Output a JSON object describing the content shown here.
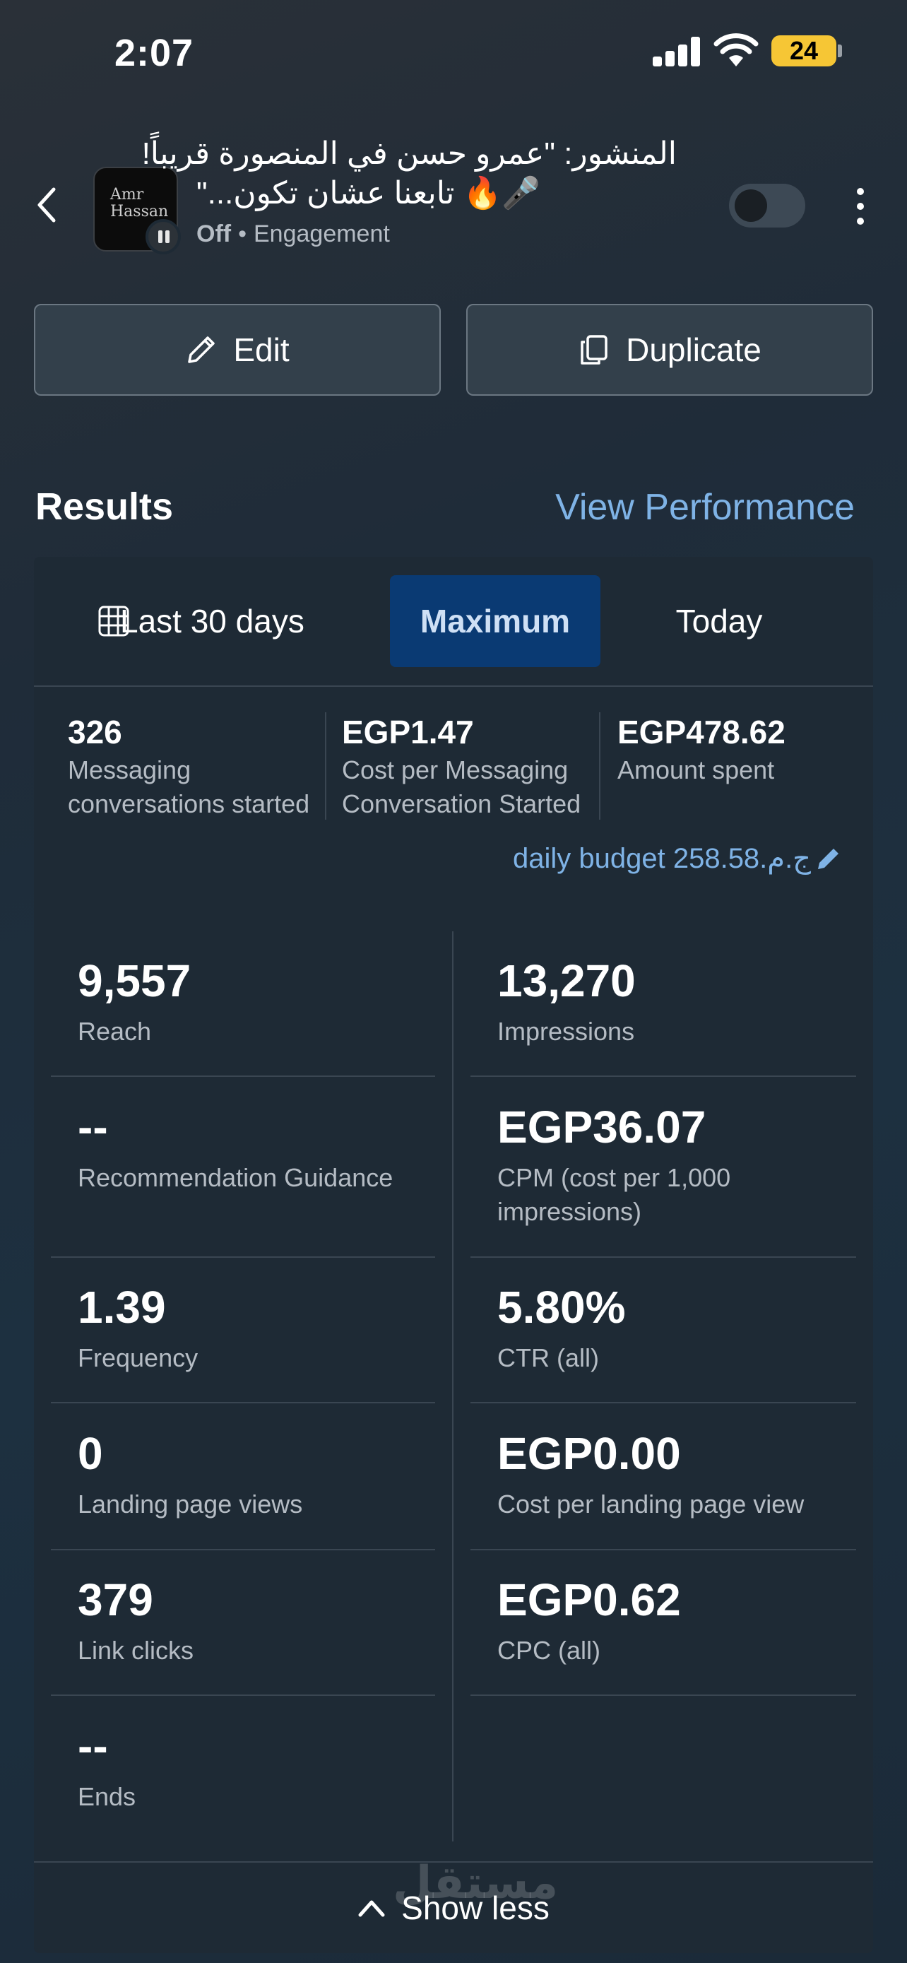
{
  "status_bar": {
    "time": "2:07",
    "battery": "24"
  },
  "header": {
    "title_line1": "المنشور: \"عمرو حسن في المنصورة قريباً!",
    "title_line2": "🎤🔥 تابعنا عشان تكون...\"",
    "thumb_text_1": "Amr",
    "thumb_text_2": "Hassan",
    "status": "Off",
    "objective": "Engagement"
  },
  "actions": {
    "edit_label": "Edit",
    "duplicate_label": "Duplicate"
  },
  "results": {
    "title": "Results",
    "view_performance": "View Performance",
    "tabs": {
      "last30": "Last 30 days",
      "maximum": "Maximum",
      "today": "Today"
    },
    "summary": [
      {
        "value": "326",
        "label": "Messaging conversations started"
      },
      {
        "value": "EGP1.47",
        "label": "Cost per Messaging Conversation Started"
      },
      {
        "value": "EGP478.62",
        "label": "Amount spent"
      }
    ],
    "daily_budget": "daily budget 258.58.ج.م",
    "metrics_left": [
      {
        "value": "9,557",
        "label": "Reach"
      },
      {
        "value": "--",
        "label": "Recommendation Guidance"
      },
      {
        "value": "1.39",
        "label": "Frequency"
      },
      {
        "value": "0",
        "label": "Landing page views"
      },
      {
        "value": "379",
        "label": "Link clicks"
      },
      {
        "value": "--",
        "label": "Ends"
      }
    ],
    "metrics_right": [
      {
        "value": "13,270",
        "label": "Impressions"
      },
      {
        "value": "EGP36.07",
        "label": "CPM (cost per 1,000 impressions)"
      },
      {
        "value": "5.80%",
        "label": "CTR (all)"
      },
      {
        "value": "EGP0.00",
        "label": "Cost per landing page view"
      },
      {
        "value": "EGP0.62",
        "label": "CPC (all)"
      }
    ],
    "show_less": "Show less"
  },
  "watermark": "مستقل",
  "colors": {
    "accent_link": "#7fb3e6",
    "selected_tab": "#0a3a73",
    "card_bg": "#1e2a35"
  }
}
